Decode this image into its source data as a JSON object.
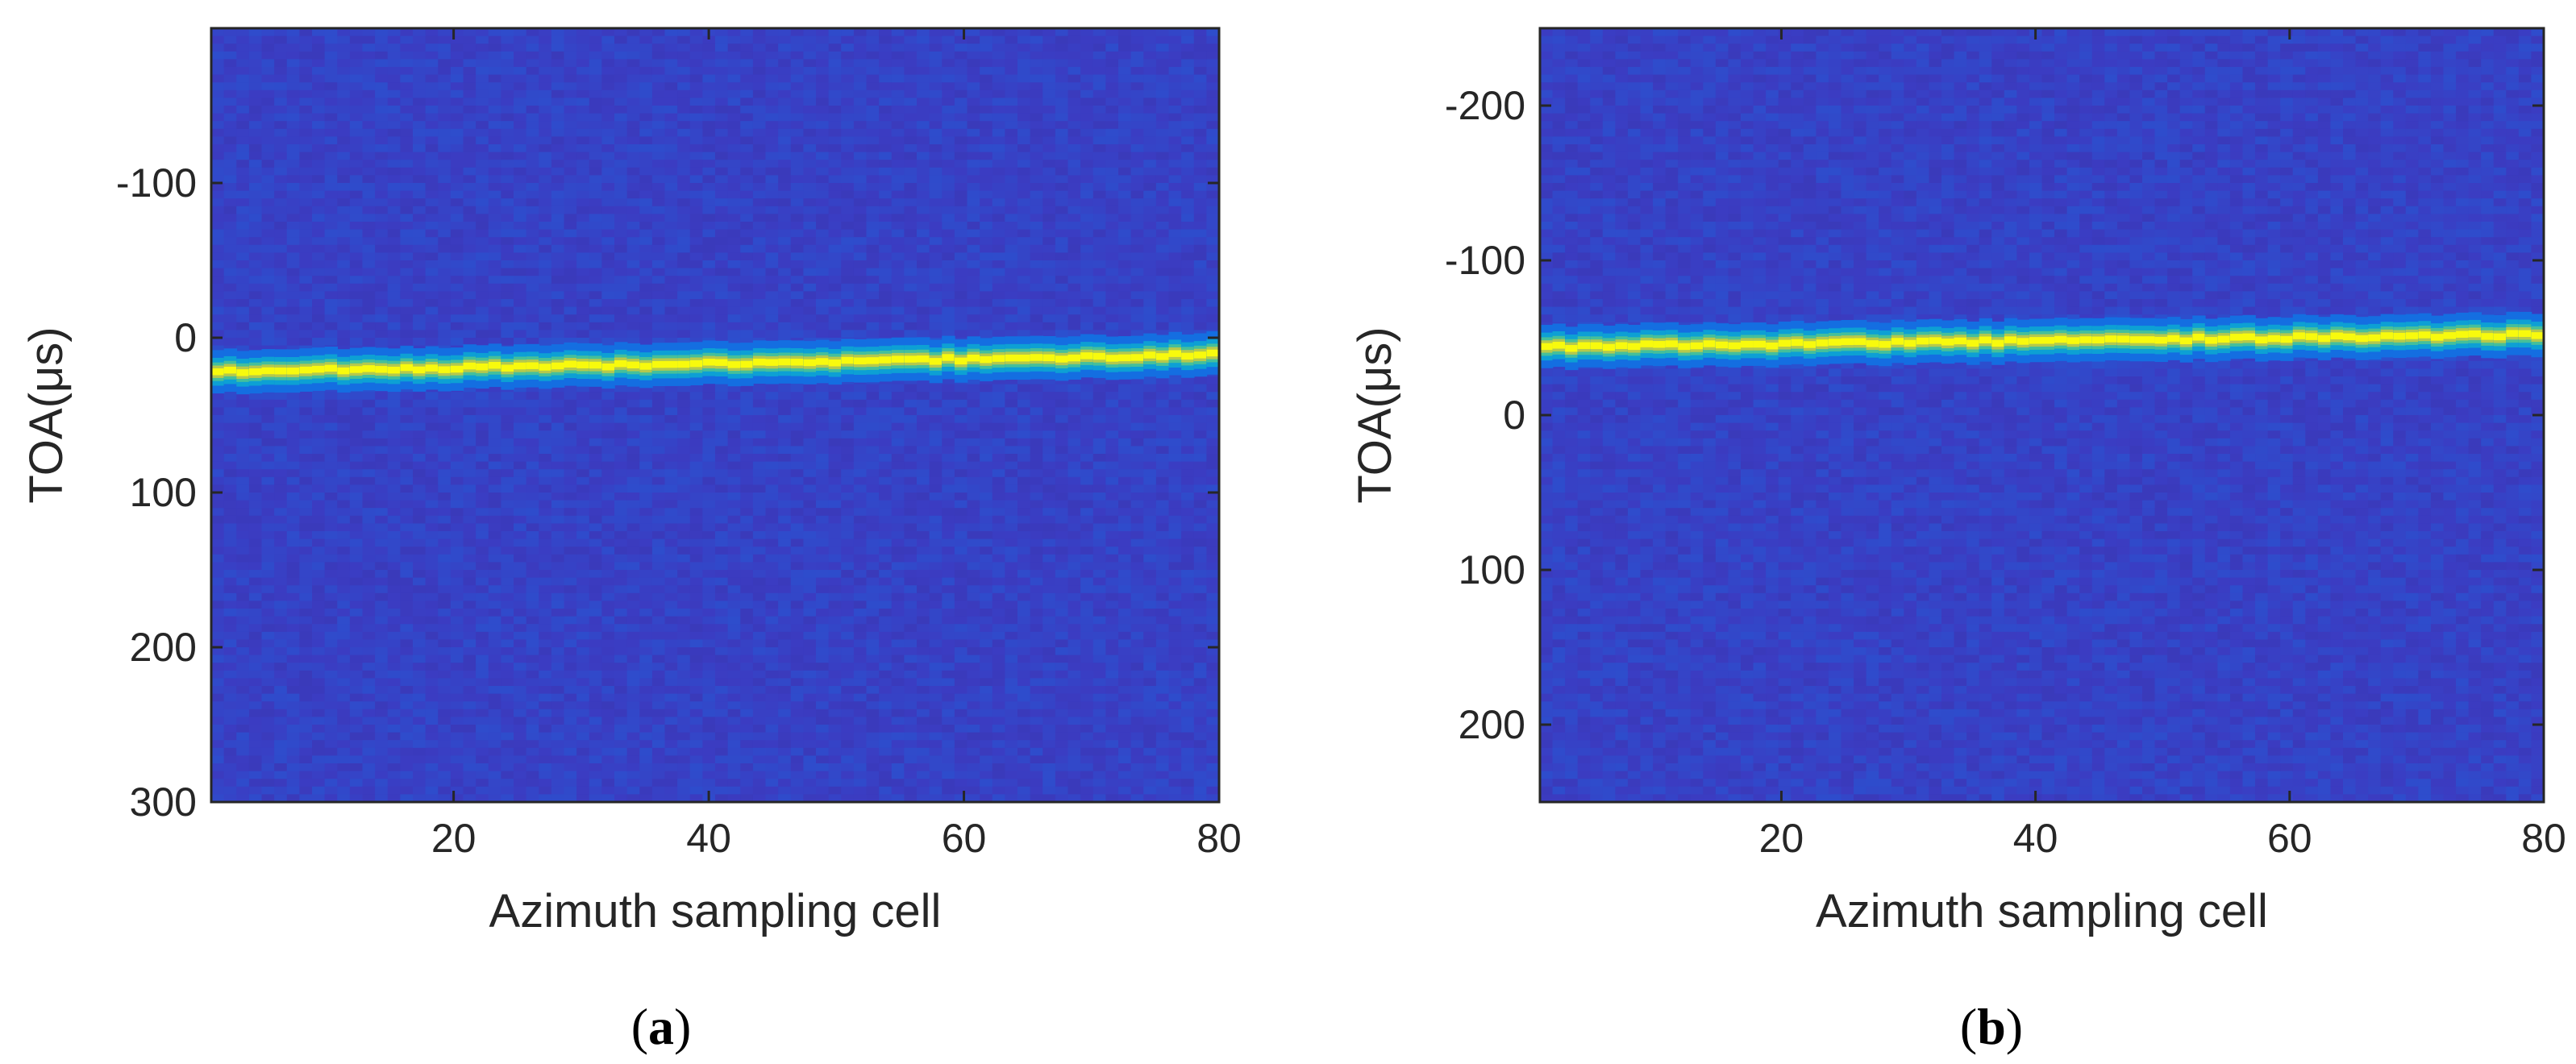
{
  "chart_data": [
    {
      "type": "heatmap",
      "caption": "(a)",
      "caption_letter": "a",
      "xlabel": "Azimuth sampling cell",
      "ylabel": "TOA(μs)",
      "xlim": [
        1,
        80
      ],
      "ylim": [
        -200,
        300
      ],
      "y_reversed": true,
      "xticks": [
        20,
        40,
        60,
        80
      ],
      "yticks": [
        -100,
        0,
        100,
        200,
        300
      ],
      "grid": false,
      "colormap": "parula",
      "background_color": "#3b3cc2",
      "peak_color": "#f6e51e",
      "ridge": {
        "x": [
          1,
          80
        ],
        "toa": [
          22,
          11
        ],
        "description": "bright ridge of peak values"
      }
    },
    {
      "type": "heatmap",
      "caption": "(b)",
      "caption_letter": "b",
      "xlabel": "Azimuth sampling cell",
      "ylabel": "TOA(μs)",
      "xlim": [
        1,
        80
      ],
      "ylim": [
        -250,
        250
      ],
      "y_reversed": true,
      "xticks": [
        20,
        40,
        60,
        80
      ],
      "yticks": [
        -200,
        -100,
        0,
        100,
        200
      ],
      "grid": false,
      "colormap": "parula",
      "background_color": "#3b3cc2",
      "peak_color": "#f6e51e",
      "ridge": {
        "x": [
          1,
          80
        ],
        "toa": [
          -44,
          -52
        ],
        "description": "bright ridge of peak values"
      }
    }
  ]
}
